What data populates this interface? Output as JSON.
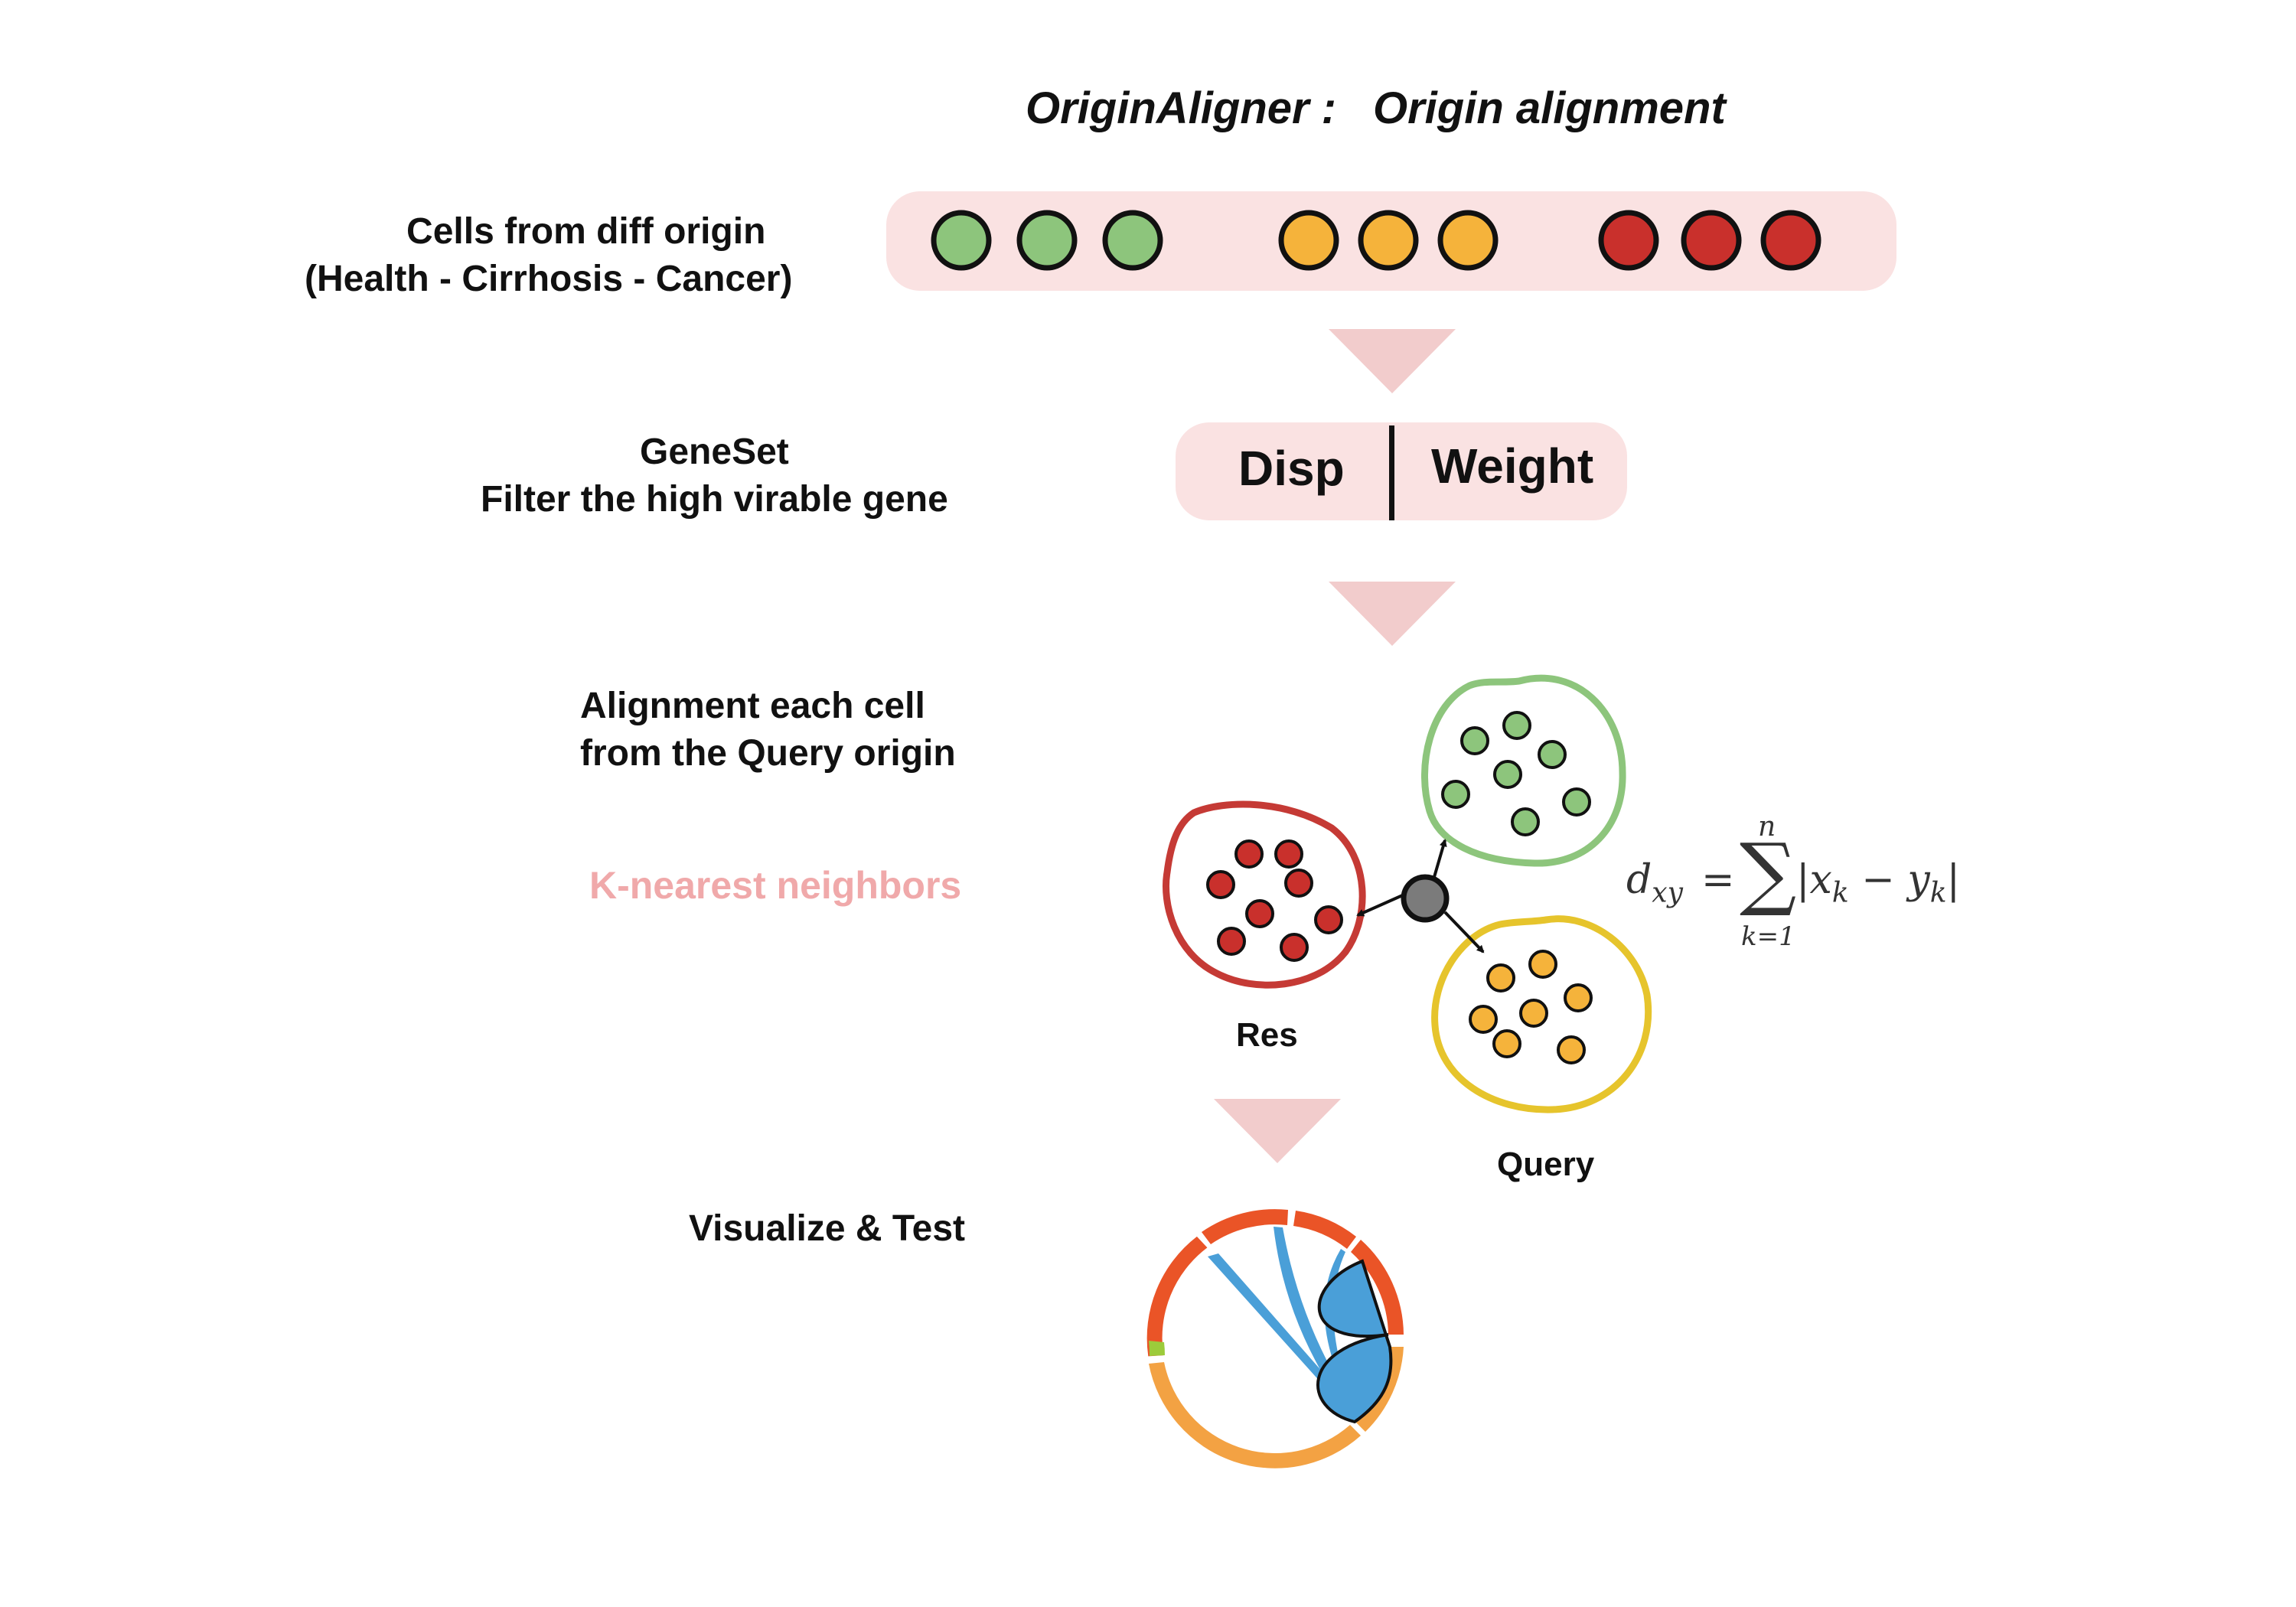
{
  "title": {
    "left": "OriginAligner :",
    "right": "Origin alignment"
  },
  "step1": {
    "line1": "Cells from diff origin",
    "line2": "(Health - Cirrhosis - Cancer)"
  },
  "step2": {
    "line1": "GeneSet",
    "line2": "Filter the high virable gene",
    "box_left": "Disp",
    "box_right": "Weight"
  },
  "step3": {
    "line1": "Alignment each cell",
    "line2": "from the Query origin",
    "method": "K-nearest neighbors",
    "res_label": "Res",
    "query_label": "Query"
  },
  "formula": {
    "lhs": "d",
    "lhs_sub": "xy",
    "eq": "=",
    "sum_top": "n",
    "sum_bottom": "k=1",
    "body_x": "x",
    "body_x_sub": "k",
    "minus": "−",
    "body_y": "y",
    "body_y_sub": "k"
  },
  "step4": {
    "line1": "Visualize & Test"
  },
  "colors": {
    "health": "#8dc57c",
    "cirrhosis": "#f5b33b",
    "cancer": "#c9302c",
    "pill_bg": "#fae2e2",
    "arrow": "#f2cccc",
    "knn_text": "#f0a9aa",
    "query_point": "#7b7b7b",
    "green_outline": "#8dc57c",
    "red_outline": "#c53a35",
    "yellow_outline": "#e6c42c",
    "chord_blue": "#4a9fd8",
    "ring_red": "#ea5427",
    "ring_orange": "#f3a243",
    "ring_green": "#9ccb3b"
  }
}
